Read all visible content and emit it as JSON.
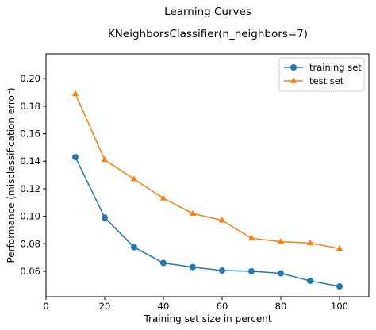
{
  "chart_data": {
    "type": "line",
    "title": "Learning Curves",
    "subtitle": "KNeighborsClassifier(n_neighbors=7)",
    "xlabel": "Training set size in percent",
    "ylabel": "Performance (misclassification error)",
    "xlim": [
      0,
      110
    ],
    "ylim": [
      0.0415,
      0.218
    ],
    "xticks": [
      0,
      20,
      40,
      60,
      80,
      100
    ],
    "yticks": [
      0.06,
      0.08,
      0.1,
      0.12,
      0.14,
      0.16,
      0.18,
      0.2
    ],
    "ytick_labels": [
      "0.06",
      "0.08",
      "0.10",
      "0.12",
      "0.14",
      "0.16",
      "0.18",
      "0.20"
    ],
    "grid": false,
    "legend_position": "upper right",
    "x": [
      10,
      20,
      30,
      40,
      50,
      60,
      70,
      80,
      90,
      100
    ],
    "series": [
      {
        "name": "training set",
        "color": "#1f77b4",
        "marker": "circle",
        "values": [
          0.143,
          0.099,
          0.0775,
          0.066,
          0.063,
          0.0605,
          0.06,
          0.0585,
          0.053,
          0.049
        ]
      },
      {
        "name": "test set",
        "color": "#ff7f0e",
        "marker": "triangle",
        "values": [
          0.189,
          0.141,
          0.127,
          0.113,
          0.102,
          0.097,
          0.084,
          0.0815,
          0.0805,
          0.0765
        ]
      }
    ]
  }
}
